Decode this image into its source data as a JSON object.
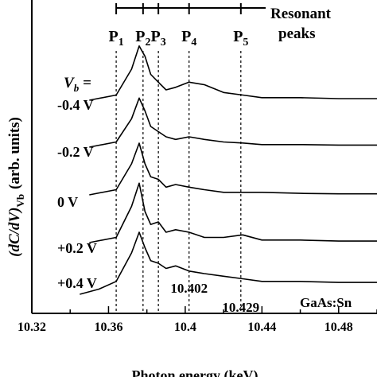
{
  "chart_data": {
    "type": "line",
    "title": "",
    "xlabel": "Photon energy (keV)",
    "ylabel": "(dC/dV)",
    "ylabel_sub": "Vb",
    "ylabel_units": "(arb. units)",
    "xlim": [
      10.32,
      10.5
    ],
    "xticks": [
      "10.32",
      "10.36",
      "10.4",
      "10.44",
      "10.48"
    ],
    "xtick_values": [
      10.32,
      10.36,
      10.4,
      10.44,
      10.48
    ],
    "legend_title": "V",
    "legend_title_sub": "b",
    "legend_title_suffix": " =",
    "sample_label": "GaAs:Sn",
    "resonant_label_line1": "Resonant",
    "resonant_label_line2": "peaks",
    "peaks": [
      {
        "label": "P",
        "sub": "1",
        "x": 10.364
      },
      {
        "label": "P",
        "sub": "2",
        "x": 10.378
      },
      {
        "label": "P",
        "sub": "3",
        "x": 10.386
      },
      {
        "label": "P",
        "sub": "4",
        "x": 10.402
      },
      {
        "label": "P",
        "sub": "5",
        "x": 10.429
      }
    ],
    "peak_annotations": [
      {
        "text": "10.402",
        "x": 10.402
      },
      {
        "text": "10.429",
        "x": 10.429
      }
    ],
    "series": [
      {
        "name": "-0.4 V",
        "x": [
          10.35,
          10.364,
          10.372,
          10.376,
          10.379,
          10.382,
          10.386,
          10.39,
          10.395,
          10.402,
          10.41,
          10.42,
          10.43,
          10.44,
          10.46,
          10.48,
          10.5
        ],
        "y": [
          0,
          0.1,
          0.6,
          1.05,
          0.85,
          0.5,
          0.35,
          0.2,
          0.25,
          0.35,
          0.3,
          0.15,
          0.1,
          0.05,
          0.05,
          0.03,
          0.03
        ]
      },
      {
        "name": "-0.2 V",
        "x": [
          10.35,
          10.364,
          10.372,
          10.376,
          10.379,
          10.382,
          10.386,
          10.39,
          10.395,
          10.402,
          10.41,
          10.42,
          10.43,
          10.44,
          10.46,
          10.48,
          10.5
        ],
        "y": [
          0,
          0.1,
          0.55,
          0.95,
          0.7,
          0.4,
          0.3,
          0.2,
          0.15,
          0.2,
          0.15,
          0.1,
          0.08,
          0.05,
          0.05,
          0.04,
          0.04
        ]
      },
      {
        "name": "0 V",
        "x": [
          10.35,
          10.364,
          10.372,
          10.376,
          10.379,
          10.382,
          10.386,
          10.39,
          10.395,
          10.402,
          10.41,
          10.42,
          10.43,
          10.44,
          10.46,
          10.48,
          10.5
        ],
        "y": [
          0,
          0.1,
          0.6,
          1.0,
          0.6,
          0.35,
          0.3,
          0.15,
          0.2,
          0.15,
          0.1,
          0.05,
          0.05,
          0.05,
          0.03,
          0.02,
          0.02
        ]
      },
      {
        "name": "+0.2 V",
        "x": [
          10.35,
          10.364,
          10.372,
          10.376,
          10.379,
          10.382,
          10.386,
          10.39,
          10.395,
          10.402,
          10.41,
          10.42,
          10.43,
          10.44,
          10.46,
          10.48,
          10.5
        ],
        "y": [
          0,
          0.1,
          0.7,
          1.15,
          0.6,
          0.35,
          0.4,
          0.2,
          0.25,
          0.2,
          0.1,
          0.1,
          0.15,
          0.05,
          0.05,
          0.03,
          0.03
        ]
      },
      {
        "name": "+0.4 V",
        "x": [
          10.345,
          10.355,
          10.364,
          10.372,
          10.376,
          10.379,
          10.382,
          10.386,
          10.39,
          10.395,
          10.402,
          10.41,
          10.42,
          10.43,
          10.44,
          10.46,
          10.48,
          10.5
        ],
        "y": [
          -0.2,
          -0.1,
          0.05,
          0.6,
          1.0,
          0.7,
          0.45,
          0.4,
          0.3,
          0.35,
          0.25,
          0.2,
          0.15,
          0.1,
          0.05,
          0.05,
          0.03,
          0.03
        ]
      }
    ]
  }
}
